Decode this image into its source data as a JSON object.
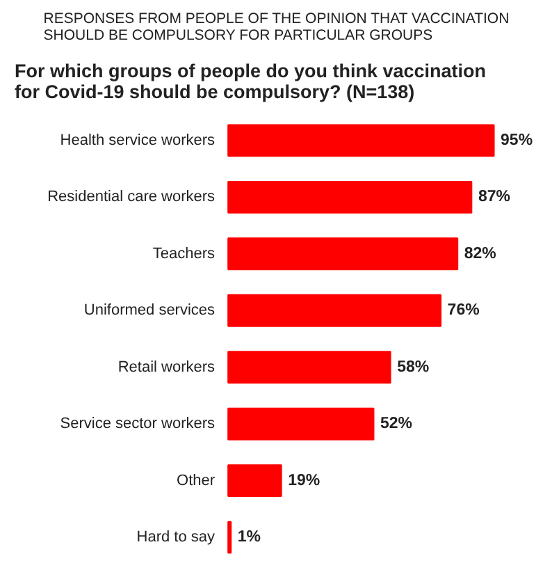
{
  "chart_data": {
    "type": "bar",
    "orientation": "horizontal",
    "title": "RESPONSES FROM PEOPLE OF THE OPINION THAT VACCINATION SHOULD BE COMPULSORY FOR PARTICULAR GROUPS",
    "subtitle": "For which groups of people do you think vaccination for Covid-19 should be compulsory? (N=138)",
    "categories": [
      "Health service workers",
      "Residential care workers",
      "Teachers",
      "Uniformed services",
      "Retail workers",
      "Service sector workers",
      "Other",
      "Hard to say"
    ],
    "values": [
      95,
      87,
      82,
      76,
      58,
      52,
      19,
      1
    ],
    "value_labels": [
      "95%",
      "87%",
      "82%",
      "76%",
      "58%",
      "52%",
      "19%",
      "1%"
    ],
    "color": "#ff0000",
    "grid": false,
    "legend": false
  }
}
